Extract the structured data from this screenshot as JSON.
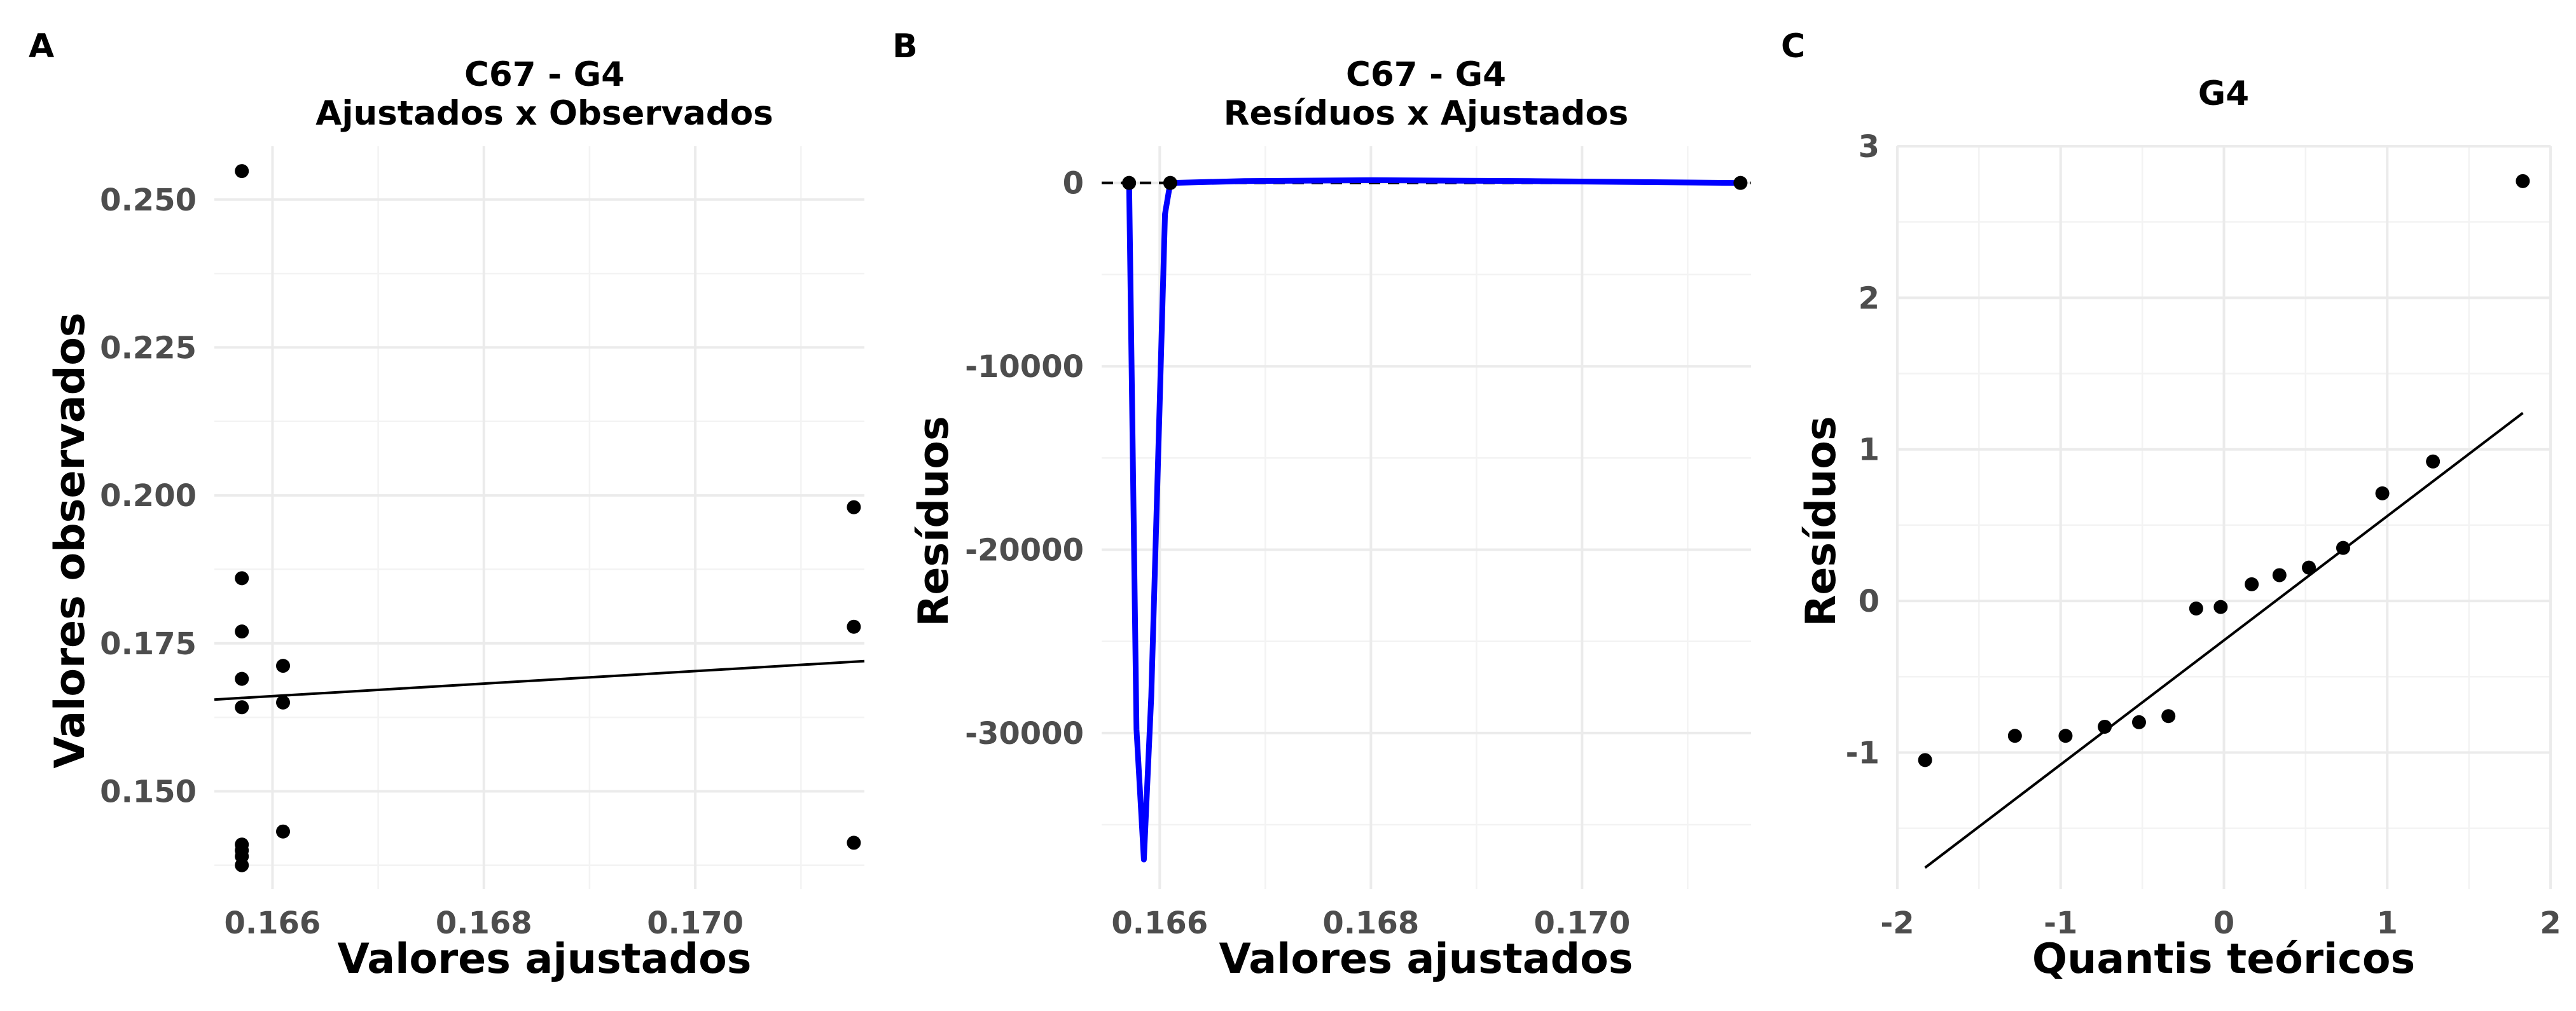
{
  "chart_data": [
    {
      "panel": "A",
      "type": "scatter",
      "title": [
        "C67 - G4",
        "Ajustados x Observados"
      ],
      "xlabel": "Valores ajustados",
      "ylabel": "Valores observados",
      "xlim": [
        0.16545,
        0.1716
      ],
      "ylim": [
        0.1335,
        0.259
      ],
      "xticks": [
        0.166,
        0.168,
        0.17
      ],
      "xtick_labels": [
        "0.166",
        "0.168",
        "0.170"
      ],
      "xminor": [
        0.165,
        0.167,
        0.169,
        0.171
      ],
      "yticks": [
        0.15,
        0.175,
        0.2,
        0.225,
        0.25
      ],
      "ytick_labels": [
        "0.150",
        "0.175",
        "0.200",
        "0.225",
        "0.250"
      ],
      "yminor": [
        0.1375,
        0.1625,
        0.1875,
        0.2125,
        0.2375
      ],
      "points": [
        {
          "x": 0.16571,
          "y": 0.2548
        },
        {
          "x": 0.16571,
          "y": 0.186
        },
        {
          "x": 0.16571,
          "y": 0.177
        },
        {
          "x": 0.16571,
          "y": 0.169
        },
        {
          "x": 0.16571,
          "y": 0.1642
        },
        {
          "x": 0.16571,
          "y": 0.141
        },
        {
          "x": 0.16571,
          "y": 0.14
        },
        {
          "x": 0.16571,
          "y": 0.139
        },
        {
          "x": 0.16571,
          "y": 0.1375
        },
        {
          "x": 0.1661,
          "y": 0.1712
        },
        {
          "x": 0.1661,
          "y": 0.165
        },
        {
          "x": 0.1661,
          "y": 0.1432
        },
        {
          "x": 0.1715,
          "y": 0.198
        },
        {
          "x": 0.1715,
          "y": 0.1778
        },
        {
          "x": 0.1715,
          "y": 0.1413
        }
      ],
      "lines": [
        {
          "x": [
            0.16545,
            0.1716
          ],
          "y": [
            0.1655,
            0.172
          ],
          "color": "#000000"
        }
      ],
      "grid": true
    },
    {
      "panel": "B",
      "type": "line",
      "title": [
        "C67 - G4",
        "Resíduos x Ajustados"
      ],
      "xlabel": "Valores ajustados",
      "ylabel": "Resíduos",
      "xlim": [
        0.16545,
        0.1716
      ],
      "ylim": [
        -38500,
        2000
      ],
      "xticks": [
        0.166,
        0.168,
        0.17
      ],
      "xtick_labels": [
        "0.166",
        "0.168",
        "0.170"
      ],
      "xminor": [
        0.165,
        0.167,
        0.169,
        0.171
      ],
      "yticks": [
        -30000,
        -20000,
        -10000,
        0
      ],
      "ytick_labels": [
        "-30000",
        "-20000",
        "-10000",
        "0"
      ],
      "yminor": [
        -35000,
        -25000,
        -15000,
        -5000
      ],
      "points": [
        {
          "x": 0.16571,
          "y": 0
        },
        {
          "x": 0.1661,
          "y": 0
        },
        {
          "x": 0.1715,
          "y": 0
        }
      ],
      "lines": [
        {
          "x": [
            0.16571,
            0.16578,
            0.16585,
            0.16592,
            0.166,
            0.16605,
            0.1661,
            0.1668,
            0.168,
            0.1695,
            0.1715
          ],
          "y": [
            0,
            -29800,
            -36900,
            -28000,
            -12000,
            -1700,
            0,
            100,
            150,
            100,
            0
          ],
          "color": "#0000ff"
        }
      ],
      "hline": {
        "y": 0,
        "style": "dashed",
        "color": "#000000"
      },
      "grid": true
    },
    {
      "panel": "C",
      "type": "scatter",
      "title": [
        "G4"
      ],
      "xlabel": "Quantis teóricos",
      "ylabel": "Resíduos",
      "xlim": [
        -2,
        2
      ],
      "ylim": [
        -1.9,
        3.0
      ],
      "xticks": [
        -2,
        -1,
        0,
        1,
        2
      ],
      "xtick_labels": [
        "-2",
        "-1",
        "0",
        "1",
        "2"
      ],
      "xminor": [
        -1.5,
        -0.5,
        0.5,
        1.5
      ],
      "yticks": [
        -1,
        0,
        1,
        2,
        3
      ],
      "ytick_labels": [
        "-1",
        "0",
        "1",
        "2",
        "3"
      ],
      "yminor": [
        -1.5,
        -0.5,
        0.5,
        1.5,
        2.5
      ],
      "points": [
        {
          "x": -1.83,
          "y": -1.05
        },
        {
          "x": -1.28,
          "y": -0.89
        },
        {
          "x": -0.97,
          "y": -0.89
        },
        {
          "x": -0.73,
          "y": -0.83
        },
        {
          "x": -0.52,
          "y": -0.8
        },
        {
          "x": -0.34,
          "y": -0.76
        },
        {
          "x": -0.17,
          "y": -0.05
        },
        {
          "x": -0.02,
          "y": -0.04
        },
        {
          "x": 0.17,
          "y": 0.11
        },
        {
          "x": 0.34,
          "y": 0.17
        },
        {
          "x": 0.52,
          "y": 0.22
        },
        {
          "x": 0.73,
          "y": 0.35
        },
        {
          "x": 0.97,
          "y": 0.71
        },
        {
          "x": 1.28,
          "y": 0.92
        },
        {
          "x": 1.83,
          "y": 2.77
        }
      ],
      "lines": [
        {
          "x": [
            -1.83,
            1.83
          ],
          "y": [
            -1.76,
            1.24
          ],
          "color": "#000000"
        }
      ],
      "grid": true
    }
  ]
}
